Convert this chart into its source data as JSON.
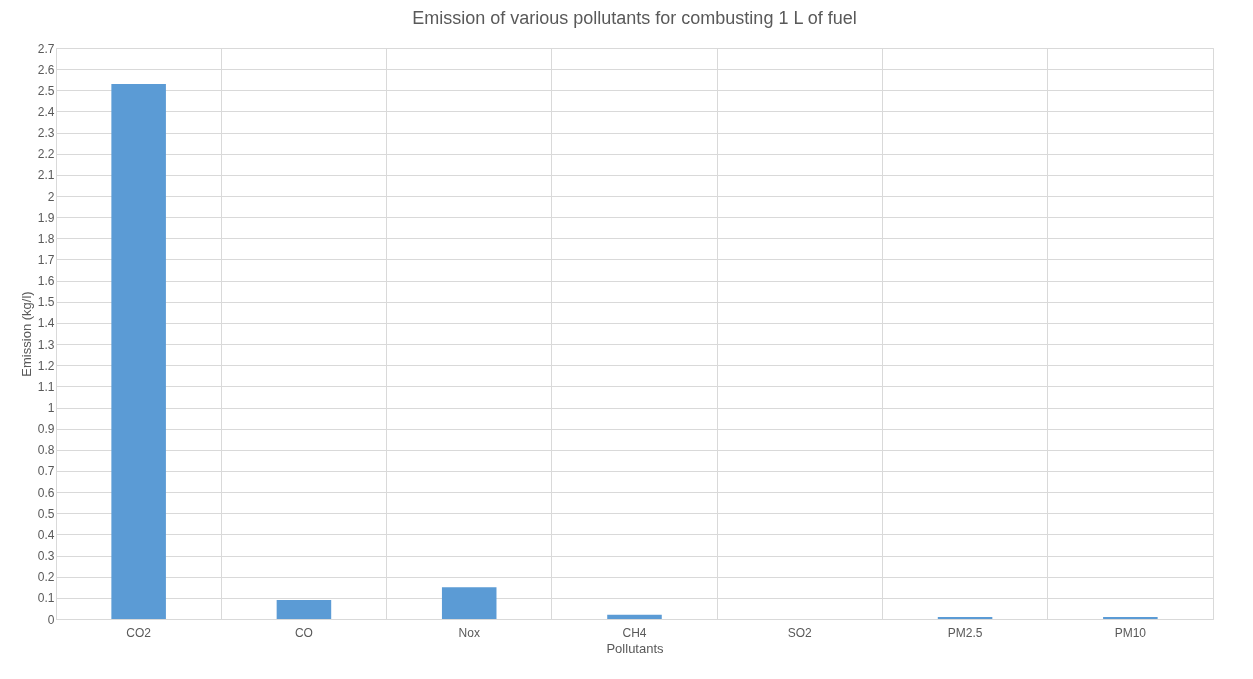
{
  "chart_data": {
    "type": "bar",
    "title": "Emission of various pollutants for combusting 1 L of fuel",
    "xlabel": "Pollutants",
    "ylabel": "Emission (kg/l)",
    "categories": [
      "CO2",
      "CO",
      "Nox",
      "CH4",
      "SO2",
      "PM2.5",
      "PM10"
    ],
    "values": [
      2.53,
      0.09,
      0.15,
      0.02,
      0,
      0.01,
      0.01
    ],
    "color": "#5b9bd5",
    "ylim": [
      0,
      2.7
    ],
    "yticks": [
      0,
      0.1,
      0.2,
      0.3,
      0.4,
      0.5,
      0.6,
      0.7,
      0.8,
      0.9,
      1,
      1.1,
      1.2,
      1.3,
      1.4,
      1.5,
      1.6,
      1.7,
      1.8,
      1.9,
      2,
      2.1,
      2.2,
      2.3,
      2.4,
      2.5,
      2.6,
      2.7
    ],
    "grid": true
  }
}
